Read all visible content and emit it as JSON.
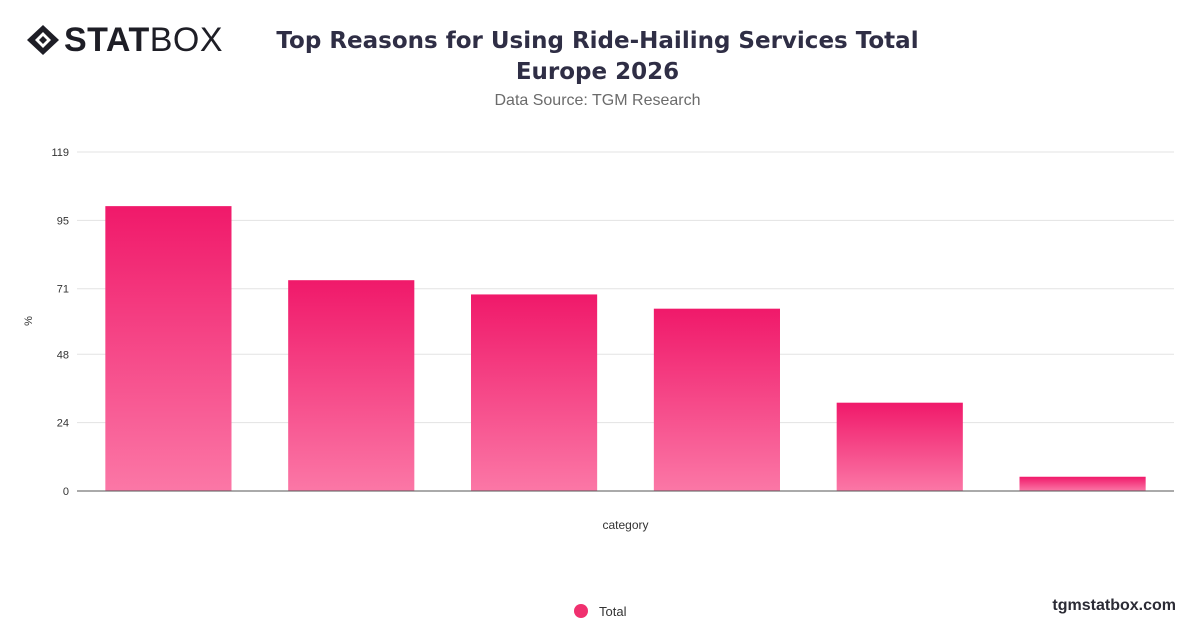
{
  "brand": {
    "logo_bold": "STAT",
    "logo_light": "BOX",
    "site": "tgmstatbox.com"
  },
  "header": {
    "title": "Top Reasons for Using Ride-Hailing Services Total Europe 2026",
    "subtitle": "Data Source: TGM Research"
  },
  "chart_data": {
    "type": "bar",
    "title": "Top Reasons for Using Ride-Hailing Services Total Europe 2026",
    "subtitle": "Data Source: TGM Research",
    "xlabel": "category",
    "ylabel": "%",
    "categories": [
      "",
      "",
      "",
      "",
      "",
      ""
    ],
    "series": [
      {
        "name": "Total",
        "values": [
          100,
          74,
          69,
          64,
          31,
          5
        ]
      }
    ],
    "ylim": [
      0,
      119
    ],
    "yticks": [
      0,
      24,
      48,
      71,
      95,
      119
    ],
    "grid": true,
    "legend_position": "bottom-center",
    "colors": {
      "bar_top": "#f0196a",
      "bar_bottom": "#fb77a6",
      "legend": "#f0306f",
      "grid": "#e3e3e3",
      "axis": "#555555"
    }
  }
}
